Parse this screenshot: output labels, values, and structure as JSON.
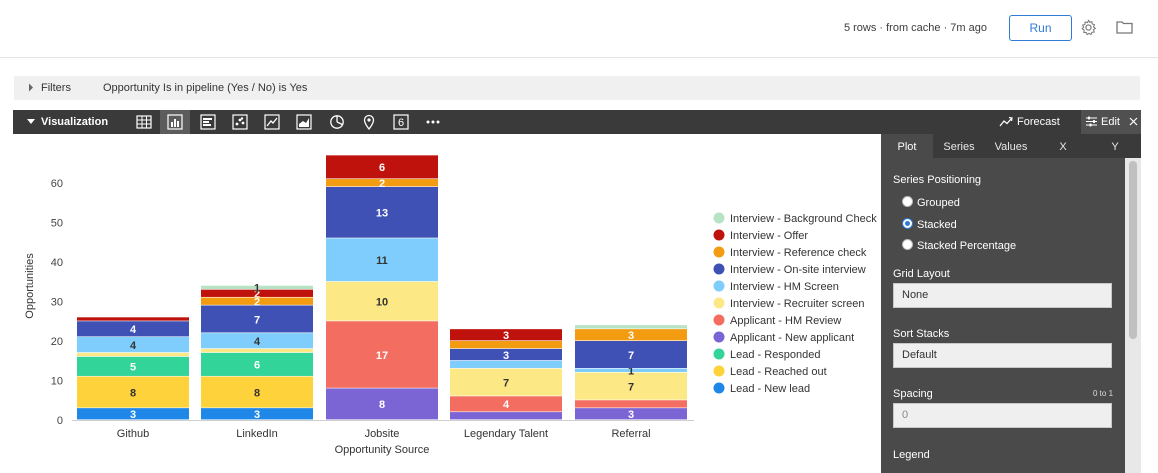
{
  "header": {
    "status": "5 rows · from cache · 7m ago",
    "run_label": "Run",
    "settings_icon": "gear-icon",
    "folder_icon": "folder-icon"
  },
  "filters": {
    "label": "Filters",
    "description": "Opportunity Is in pipeline (Yes / No) is Yes"
  },
  "visualization": {
    "label": "Visualization",
    "tools": [
      "table-icon",
      "column-chart-icon",
      "bar-chart-icon",
      "scatter-icon",
      "line-chart-icon",
      "area-chart-icon",
      "pie-chart-icon",
      "map-pin-icon",
      "single-value-icon",
      "more-icon"
    ],
    "single_value_glyph": "6",
    "forecast_label": "Forecast",
    "edit_label": "Edit"
  },
  "panel": {
    "tabs": [
      "Plot",
      "Series",
      "Values",
      "X",
      "Y"
    ],
    "active_tab": "Plot",
    "series_positioning": {
      "title": "Series Positioning",
      "options": [
        "Grouped",
        "Stacked",
        "Stacked Percentage"
      ],
      "selected": "Stacked"
    },
    "grid_layout": {
      "title": "Grid Layout",
      "value": "None"
    },
    "sort_stacks": {
      "title": "Sort Stacks",
      "value": "Default"
    },
    "spacing": {
      "title": "Spacing",
      "range": "0 to 1",
      "placeholder": "0"
    },
    "legend": {
      "title": "Legend"
    }
  },
  "chart_data": {
    "type": "bar",
    "stacked": true,
    "xlabel": "Opportunity Source",
    "ylabel": "Opportunities",
    "ylim": [
      0,
      67
    ],
    "yticks": [
      0,
      10,
      20,
      30,
      40,
      50,
      60
    ],
    "categories": [
      "Github",
      "LinkedIn",
      "Jobsite",
      "Legendary Talent",
      "Referral"
    ],
    "series": [
      {
        "name": "Lead - New lead",
        "color": "#1f87e8",
        "values": [
          3,
          3,
          0,
          0,
          0
        ]
      },
      {
        "name": "Lead - Reached out",
        "color": "#fdd23a",
        "values": [
          8,
          8,
          0,
          0,
          0
        ]
      },
      {
        "name": "Lead - Responded",
        "color": "#33d49a",
        "values": [
          5,
          6,
          0,
          0,
          0
        ]
      },
      {
        "name": "Applicant - New applicant",
        "color": "#7b64d4",
        "values": [
          0,
          0,
          8,
          2,
          3
        ]
      },
      {
        "name": "Applicant - HM Review",
        "color": "#f36e61",
        "values": [
          0,
          0,
          17,
          4,
          2
        ]
      },
      {
        "name": "Interview - Recruiter screen",
        "color": "#fde886",
        "values": [
          1,
          1,
          10,
          7,
          7
        ]
      },
      {
        "name": "Interview - HM Screen",
        "color": "#7fcdfc",
        "values": [
          4,
          4,
          11,
          2,
          1
        ]
      },
      {
        "name": "Interview - On-site interview",
        "color": "#3f51b5",
        "values": [
          4,
          7,
          13,
          3,
          7
        ]
      },
      {
        "name": "Interview - Reference check",
        "color": "#f39c12",
        "values": [
          0,
          2,
          2,
          2,
          3
        ]
      },
      {
        "name": "Interview - Offer",
        "color": "#c0120c",
        "values": [
          1,
          2,
          6,
          3,
          0
        ]
      },
      {
        "name": "Interview - Background Check",
        "color": "#b7e3c4",
        "values": [
          0,
          1,
          0,
          0,
          1
        ]
      }
    ],
    "data_labels": [
      {
        "category": "Github",
        "series": "Lead - New lead",
        "text": "3"
      },
      {
        "category": "Github",
        "series": "Lead - Reached out",
        "text": "8"
      },
      {
        "category": "Github",
        "series": "Lead - Responded",
        "text": "5"
      },
      {
        "category": "Github",
        "series": "Interview - HM Screen",
        "text": "4"
      },
      {
        "category": "Github",
        "series": "Interview - On-site interview",
        "text": "4"
      },
      {
        "category": "LinkedIn",
        "series": "Lead - New lead",
        "text": "3"
      },
      {
        "category": "LinkedIn",
        "series": "Lead - Reached out",
        "text": "8"
      },
      {
        "category": "LinkedIn",
        "series": "Lead - Responded",
        "text": "6"
      },
      {
        "category": "LinkedIn",
        "series": "Interview - HM Screen",
        "text": "4"
      },
      {
        "category": "LinkedIn",
        "series": "Interview - On-site interview",
        "text": "7"
      },
      {
        "category": "LinkedIn",
        "series": "Interview - Reference check",
        "text": "2"
      },
      {
        "category": "LinkedIn",
        "series": "Interview - Offer",
        "text": "2"
      },
      {
        "category": "LinkedIn",
        "series": "Interview - Background Check",
        "text": "1"
      },
      {
        "category": "Jobsite",
        "series": "Applicant - New applicant",
        "text": "8"
      },
      {
        "category": "Jobsite",
        "series": "Applicant - HM Review",
        "text": "17"
      },
      {
        "category": "Jobsite",
        "series": "Interview - Recruiter screen",
        "text": "10"
      },
      {
        "category": "Jobsite",
        "series": "Interview - HM Screen",
        "text": "11"
      },
      {
        "category": "Jobsite",
        "series": "Interview - On-site interview",
        "text": "13"
      },
      {
        "category": "Jobsite",
        "series": "Interview - Reference check",
        "text": "2"
      },
      {
        "category": "Jobsite",
        "series": "Interview - Offer",
        "text": "6"
      },
      {
        "category": "Legendary Talent",
        "series": "Applicant - HM Review",
        "text": "4"
      },
      {
        "category": "Legendary Talent",
        "series": "Interview - Recruiter screen",
        "text": "7"
      },
      {
        "category": "Legendary Talent",
        "series": "Interview - On-site interview",
        "text": "3"
      },
      {
        "category": "Legendary Talent",
        "series": "Interview - Offer",
        "text": "3"
      },
      {
        "category": "Referral",
        "series": "Applicant - New applicant",
        "text": "3"
      },
      {
        "category": "Referral",
        "series": "Interview - Recruiter screen",
        "text": "7"
      },
      {
        "category": "Referral",
        "series": "Interview - HM Screen",
        "text": "1"
      },
      {
        "category": "Referral",
        "series": "Interview - On-site interview",
        "text": "7"
      },
      {
        "category": "Referral",
        "series": "Interview - Reference check",
        "text": "3"
      }
    ],
    "legend_order": [
      "Interview - Background Check",
      "Interview - Offer",
      "Interview - Reference check",
      "Interview - On-site interview",
      "Interview - HM Screen",
      "Interview - Recruiter screen",
      "Applicant - HM Review",
      "Applicant - New applicant",
      "Lead - Responded",
      "Lead - Reached out",
      "Lead - New lead"
    ],
    "legend_placement": "right",
    "grid": false
  }
}
